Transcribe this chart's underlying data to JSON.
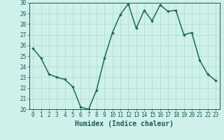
{
  "x": [
    0,
    1,
    2,
    3,
    4,
    5,
    6,
    7,
    8,
    9,
    10,
    11,
    12,
    13,
    14,
    15,
    16,
    17,
    18,
    19,
    20,
    21,
    22,
    23
  ],
  "y": [
    25.7,
    24.8,
    23.3,
    23.0,
    22.8,
    22.1,
    20.2,
    20.0,
    21.8,
    24.8,
    27.2,
    28.9,
    29.9,
    27.6,
    29.3,
    28.3,
    29.8,
    29.2,
    29.3,
    27.0,
    27.2,
    24.6,
    23.3,
    22.7
  ],
  "line_color": "#1a6b5a",
  "marker": "D",
  "marker_size": 1.8,
  "bg_color": "#cff0eb",
  "grid_color": "#aaddcc",
  "xlabel": "Humidex (Indice chaleur)",
  "ylim": [
    20,
    30
  ],
  "xlim": [
    -0.5,
    23.5
  ],
  "yticks": [
    20,
    21,
    22,
    23,
    24,
    25,
    26,
    27,
    28,
    29,
    30
  ],
  "xticks": [
    0,
    1,
    2,
    3,
    4,
    5,
    6,
    7,
    8,
    9,
    10,
    11,
    12,
    13,
    14,
    15,
    16,
    17,
    18,
    19,
    20,
    21,
    22,
    23
  ],
  "tick_label_fontsize": 5.5,
  "xlabel_fontsize": 7.0,
  "linewidth": 1.1
}
